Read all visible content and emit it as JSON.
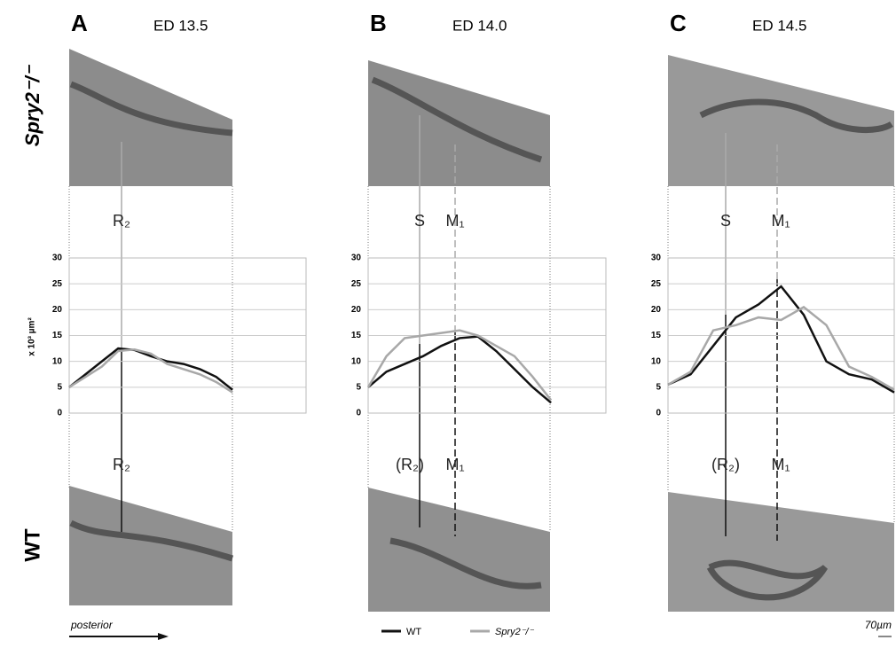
{
  "figure": {
    "row_labels": [
      "Spry2⁻/⁻",
      "WT"
    ],
    "legend": [
      {
        "name": "WT",
        "color": "#111111"
      },
      {
        "name": "Spry2⁻/⁻",
        "color": "#a8a8a8"
      }
    ],
    "direction_label": "posterior",
    "scale_label": "70µm"
  },
  "chart_data": [
    {
      "type": "line",
      "panel": "A",
      "title": "ED 13.5",
      "y_label": "x 10³ µm²",
      "x": [
        0,
        1,
        2,
        3,
        4,
        5,
        6,
        7,
        8,
        9,
        10
      ],
      "xlim": [
        0,
        14.5
      ],
      "ylim": [
        0,
        30
      ],
      "yticks": [
        0,
        5,
        10,
        15,
        20,
        25,
        30
      ],
      "grid": true,
      "annotations_top": [
        "R₂"
      ],
      "annotations_bottom": [
        "R₂"
      ],
      "series": [
        {
          "color": "#111111",
          "values": [
            5,
            7.5,
            10,
            12.5,
            12.2,
            11,
            10,
            9.5,
            8.5,
            7,
            4.5
          ]
        },
        {
          "color": "#a8a8a8",
          "values": [
            5,
            7,
            9,
            12,
            12.3,
            11.5,
            9.5,
            8.5,
            7.5,
            6,
            4
          ]
        }
      ]
    },
    {
      "type": "line",
      "panel": "B",
      "title": "ED 14.0",
      "x": [
        0,
        1,
        2,
        3,
        4,
        5,
        6,
        7,
        8,
        9,
        10
      ],
      "xlim": [
        0,
        13
      ],
      "ylim": [
        0,
        30
      ],
      "yticks": [
        0,
        5,
        10,
        15,
        20,
        25,
        30
      ],
      "grid": true,
      "annotations_top": [
        "S",
        "M₁"
      ],
      "annotations_bottom": [
        "(R₂)",
        "M₁"
      ],
      "series": [
        {
          "color": "#111111",
          "values": [
            5,
            8,
            9.5,
            11,
            13,
            14.5,
            14.8,
            12,
            8.5,
            5,
            2
          ]
        },
        {
          "color": "#a8a8a8",
          "values": [
            5,
            11,
            14.5,
            15,
            15.5,
            16,
            15,
            13,
            11,
            7,
            2.5
          ]
        }
      ]
    },
    {
      "type": "line",
      "panel": "C",
      "title": "ED 14.5",
      "x": [
        0,
        1,
        2,
        3,
        4,
        5,
        6,
        7,
        8,
        9,
        10
      ],
      "xlim": [
        0,
        10
      ],
      "ylim": [
        0,
        30
      ],
      "yticks": [
        0,
        5,
        10,
        15,
        20,
        25,
        30
      ],
      "grid": true,
      "annotations_top": [
        "S",
        "M₁"
      ],
      "annotations_bottom": [
        "(R₂)",
        "M₁"
      ],
      "series": [
        {
          "color": "#111111",
          "values": [
            5.5,
            7.5,
            13,
            18.5,
            21,
            24.5,
            19,
            10,
            7.5,
            6.5,
            4
          ]
        },
        {
          "color": "#a8a8a8",
          "values": [
            5.5,
            8,
            16,
            17,
            18.5,
            18,
            20.5,
            17,
            9,
            7,
            4.5
          ]
        }
      ]
    }
  ]
}
